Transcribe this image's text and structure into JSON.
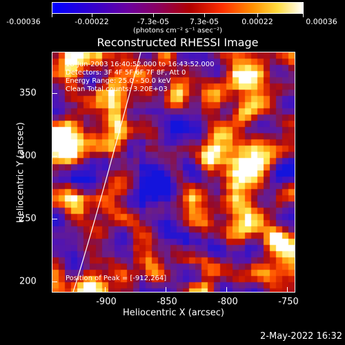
{
  "colorbar": {
    "labels": [
      "-0.00036",
      "-0.00022",
      "-7.3e-05",
      "7.3e-05",
      "0.00022",
      "0.00036"
    ],
    "units": "(photons cm⁻² s⁻¹ asec⁻²)"
  },
  "title": "Reconstructed RHESSI Image",
  "info": {
    "time": "18-Jun-2003 16:40:52.000 to 16:43:52.000",
    "detectors": "Detectors: 3F 4F 5F 6F 7F 8F, Att 0",
    "energy": "Energy Range: 25.0 - 50.0 keV",
    "clean": "Clean    Total counts: 3.20E+03",
    "peak": "Position of Peak = [-912,264]"
  },
  "axes": {
    "x_label": "Heliocentric X (arcsec)",
    "y_label": "Heliocentric Y (arcsec)",
    "x_ticks": [
      "-900",
      "-850",
      "-800",
      "-750"
    ],
    "y_ticks": [
      "350",
      "300",
      "250",
      "200"
    ]
  },
  "timestamp": "2-May-2022 16:32"
}
